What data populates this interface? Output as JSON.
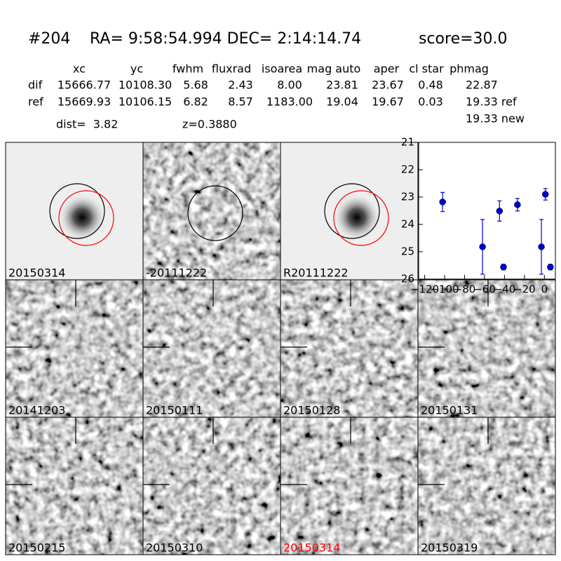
{
  "header": {
    "id": "#204",
    "coords": "RA= 9:58:54.994 DEC= 2:14:14.74",
    "score": "score=30.0"
  },
  "table": {
    "columns": [
      "xc",
      "yc",
      "fwhm",
      "fluxrad",
      "isoarea",
      "mag auto",
      "aper",
      "cl star",
      "phmag"
    ],
    "rows": [
      [
        "dif",
        "15666.77",
        "10108.30",
        "5.68",
        "2.43",
        "8.00",
        "23.81",
        "23.67",
        "0.48",
        "22.87"
      ],
      [
        "ref",
        "15669.93",
        "10106.15",
        "6.82",
        "8.57",
        "1183.00",
        "19.04",
        "19.67",
        "0.03",
        "19.33 ref"
      ]
    ],
    "note": "19.33 new"
  },
  "dist": "dist=  3.82",
  "z": "z=0.3880",
  "panels": [
    {
      "label": "20150314",
      "color": "#000000"
    },
    {
      "label": "-20111222",
      "color": "#000000"
    },
    {
      "label": "R20111222",
      "color": "#000000"
    },
    {
      "label": "20141203",
      "color": "#000000"
    },
    {
      "label": "20150111",
      "color": "#000000"
    },
    {
      "label": "20150128",
      "color": "#000000"
    },
    {
      "label": "20150131",
      "color": "#000000"
    },
    {
      "label": "20150215",
      "color": "#000000"
    },
    {
      "label": "20150310",
      "color": "#000000"
    },
    {
      "label": "20150314",
      "color": "#ff0000"
    },
    {
      "label": "20150319",
      "color": "#000000"
    }
  ],
  "chart_data": {
    "type": "errorbar",
    "color": "#0000cc",
    "x": [
      -102,
      -62,
      -45,
      -41,
      -27,
      -3,
      1,
      6
    ],
    "values": [
      23.18,
      24.82,
      23.51,
      25.56,
      23.28,
      24.82,
      22.9,
      25.56
    ],
    "errors": [
      0.35,
      1.0,
      0.37,
      0.1,
      0.23,
      1.0,
      0.21,
      0.1
    ],
    "xlim": [
      -126,
      11
    ],
    "ylim": [
      21,
      26
    ],
    "invert_y": true,
    "xticks": [
      {
        "value": -120,
        "label": "−120"
      },
      {
        "value": -100,
        "label": "−100"
      },
      {
        "value": -80,
        "label": "−80"
      },
      {
        "value": -60,
        "label": "−60"
      },
      {
        "value": -40,
        "label": "−40"
      },
      {
        "value": -20,
        "label": "−20"
      },
      0
    ],
    "yticks": [
      21,
      22,
      23,
      24,
      25,
      26
    ]
  }
}
